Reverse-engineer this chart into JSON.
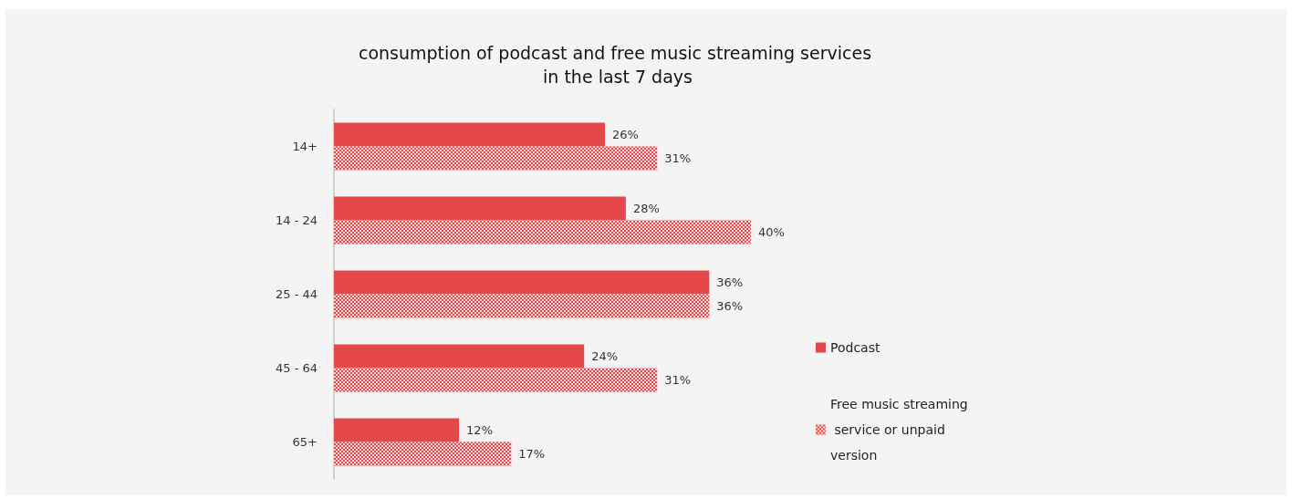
{
  "chart_data": {
    "type": "bar",
    "orientation": "horizontal",
    "title": "consumption of podcast and free music streaming services in the last 7 days",
    "categories": [
      "14+",
      "14 - 24",
      "25 - 44",
      "45 - 64",
      "65+"
    ],
    "series": [
      {
        "name": "Podcast",
        "color": "#e5484a",
        "values": [
          26,
          28,
          36,
          24,
          12
        ],
        "value_labels": [
          "26%",
          "28%",
          "36%",
          "24%",
          "12%"
        ]
      },
      {
        "name": "Free music streaming service or unpaid version",
        "color": "#e5484a",
        "values": [
          31,
          40,
          36,
          31,
          17
        ],
        "value_labels": [
          "31%",
          "40%",
          "36%",
          "31%",
          "17%"
        ]
      }
    ],
    "legend": "right"
  }
}
